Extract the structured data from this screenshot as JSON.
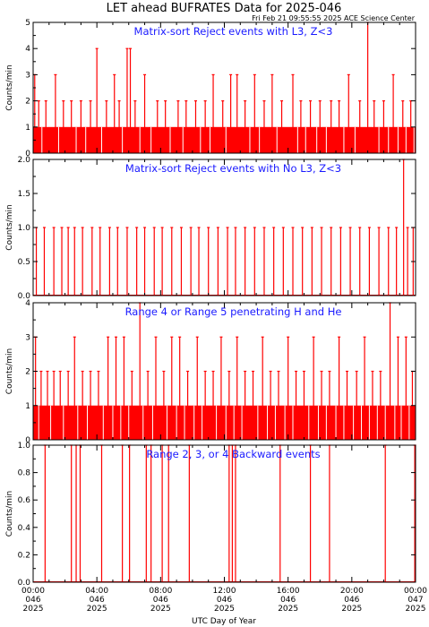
{
  "title": "LET ahead BUFRATES Data for 2025-046",
  "timestamp": "Fri Feb 21 09:55:55 2025 ACE Science Center",
  "xlabel": "UTC Day of Year",
  "x_ticks": [
    {
      "time": "00:00",
      "doy": "046",
      "year": "2025"
    },
    {
      "time": "04:00",
      "doy": "046",
      "year": "2025"
    },
    {
      "time": "08:00",
      "doy": "046",
      "year": "2025"
    },
    {
      "time": "12:00",
      "doy": "046",
      "year": "2025"
    },
    {
      "time": "16:00",
      "doy": "046",
      "year": "2025"
    },
    {
      "time": "20:00",
      "doy": "046",
      "year": "2025"
    },
    {
      "time": "00:00",
      "doy": "047",
      "year": "2025"
    }
  ],
  "colors": {
    "data": "#ff0000",
    "label": "#1a1aff",
    "axis": "#000000"
  },
  "chart_data": [
    {
      "type": "line",
      "title": "Matrix-sort Reject events with L3, Z<3",
      "ylabel": "Counts/min",
      "ylim": [
        0,
        5
      ],
      "yticks": [
        "0",
        "1",
        "2",
        "3",
        "4",
        "5"
      ],
      "xlim_hours": [
        0,
        24
      ],
      "spikes": [
        {
          "x": 0.1,
          "y": 3
        },
        {
          "x": 0.35,
          "y": 2
        },
        {
          "x": 0.8,
          "y": 2
        },
        {
          "x": 1.4,
          "y": 3
        },
        {
          "x": 1.9,
          "y": 2
        },
        {
          "x": 2.4,
          "y": 2
        },
        {
          "x": 3.0,
          "y": 2
        },
        {
          "x": 3.6,
          "y": 2
        },
        {
          "x": 4.0,
          "y": 4
        },
        {
          "x": 4.6,
          "y": 2
        },
        {
          "x": 5.1,
          "y": 3
        },
        {
          "x": 5.4,
          "y": 2
        },
        {
          "x": 5.9,
          "y": 4
        },
        {
          "x": 6.1,
          "y": 4
        },
        {
          "x": 6.4,
          "y": 2
        },
        {
          "x": 7.0,
          "y": 3
        },
        {
          "x": 7.8,
          "y": 2
        },
        {
          "x": 8.3,
          "y": 2
        },
        {
          "x": 9.1,
          "y": 2
        },
        {
          "x": 9.6,
          "y": 2
        },
        {
          "x": 10.2,
          "y": 2
        },
        {
          "x": 10.8,
          "y": 2
        },
        {
          "x": 11.3,
          "y": 3
        },
        {
          "x": 11.9,
          "y": 2
        },
        {
          "x": 12.4,
          "y": 3
        },
        {
          "x": 12.8,
          "y": 3
        },
        {
          "x": 13.3,
          "y": 2
        },
        {
          "x": 13.9,
          "y": 3
        },
        {
          "x": 14.5,
          "y": 2
        },
        {
          "x": 15.0,
          "y": 3
        },
        {
          "x": 15.6,
          "y": 2
        },
        {
          "x": 16.3,
          "y": 3
        },
        {
          "x": 16.8,
          "y": 2
        },
        {
          "x": 17.4,
          "y": 2
        },
        {
          "x": 18.0,
          "y": 2
        },
        {
          "x": 18.7,
          "y": 2
        },
        {
          "x": 19.2,
          "y": 2
        },
        {
          "x": 19.8,
          "y": 3
        },
        {
          "x": 20.5,
          "y": 2
        },
        {
          "x": 21.0,
          "y": 5
        },
        {
          "x": 21.4,
          "y": 2
        },
        {
          "x": 22.0,
          "y": 2
        },
        {
          "x": 22.6,
          "y": 3
        },
        {
          "x": 23.2,
          "y": 2
        },
        {
          "x": 23.7,
          "y": 2
        }
      ],
      "baseline": 1,
      "zero_dips": [
        0.55,
        1.6,
        2.7,
        3.3,
        4.3,
        5.6,
        6.7,
        7.4,
        8.6,
        9.4,
        10.5,
        11.1,
        12.1,
        13.6,
        14.2,
        15.3,
        16.6,
        17.1,
        17.8,
        18.4,
        19.5,
        20.2,
        21.7,
        22.3,
        22.9,
        23.4,
        23.9
      ]
    },
    {
      "type": "line",
      "title": "Matrix-sort Reject events with No L3, Z<3",
      "ylabel": "Counts/min",
      "ylim": [
        0,
        2
      ],
      "yticks": [
        "0.0",
        "0.5",
        "1.0",
        "1.5",
        "2.0"
      ],
      "xlim_hours": [
        0,
        24
      ],
      "spikes": [
        {
          "x": 0.2,
          "y": 1
        },
        {
          "x": 0.7,
          "y": 1
        },
        {
          "x": 1.3,
          "y": 1
        },
        {
          "x": 1.8,
          "y": 1
        },
        {
          "x": 2.2,
          "y": 1
        },
        {
          "x": 2.6,
          "y": 1
        },
        {
          "x": 3.1,
          "y": 1
        },
        {
          "x": 3.7,
          "y": 1
        },
        {
          "x": 4.2,
          "y": 1
        },
        {
          "x": 4.8,
          "y": 1
        },
        {
          "x": 5.3,
          "y": 1
        },
        {
          "x": 5.9,
          "y": 1
        },
        {
          "x": 6.5,
          "y": 1
        },
        {
          "x": 7.0,
          "y": 1
        },
        {
          "x": 7.6,
          "y": 1
        },
        {
          "x": 8.1,
          "y": 1
        },
        {
          "x": 8.7,
          "y": 1
        },
        {
          "x": 9.3,
          "y": 1
        },
        {
          "x": 9.9,
          "y": 1
        },
        {
          "x": 10.4,
          "y": 1
        },
        {
          "x": 11.0,
          "y": 1
        },
        {
          "x": 11.6,
          "y": 1
        },
        {
          "x": 12.2,
          "y": 1
        },
        {
          "x": 12.7,
          "y": 1
        },
        {
          "x": 13.3,
          "y": 1
        },
        {
          "x": 13.9,
          "y": 1
        },
        {
          "x": 14.5,
          "y": 1
        },
        {
          "x": 15.1,
          "y": 1
        },
        {
          "x": 15.7,
          "y": 1
        },
        {
          "x": 16.3,
          "y": 1
        },
        {
          "x": 16.9,
          "y": 1
        },
        {
          "x": 17.5,
          "y": 1
        },
        {
          "x": 18.1,
          "y": 1
        },
        {
          "x": 18.7,
          "y": 1
        },
        {
          "x": 19.3,
          "y": 1
        },
        {
          "x": 19.9,
          "y": 1
        },
        {
          "x": 20.5,
          "y": 1
        },
        {
          "x": 21.1,
          "y": 1
        },
        {
          "x": 21.7,
          "y": 1
        },
        {
          "x": 22.3,
          "y": 1
        },
        {
          "x": 22.8,
          "y": 1
        },
        {
          "x": 23.25,
          "y": 2
        },
        {
          "x": 23.5,
          "y": 1
        },
        {
          "x": 23.85,
          "y": 1
        }
      ],
      "baseline": 0,
      "zero_dips": []
    },
    {
      "type": "line",
      "title": "Range 4 or Range 5 penetrating H and He",
      "ylabel": "Counts/min",
      "ylim": [
        0,
        4
      ],
      "yticks": [
        "0",
        "1",
        "2",
        "3",
        "4"
      ],
      "xlim_hours": [
        0,
        24
      ],
      "spikes": [
        {
          "x": 0.15,
          "y": 3
        },
        {
          "x": 0.5,
          "y": 2
        },
        {
          "x": 0.9,
          "y": 2
        },
        {
          "x": 1.3,
          "y": 2
        },
        {
          "x": 1.7,
          "y": 2
        },
        {
          "x": 2.2,
          "y": 2
        },
        {
          "x": 2.6,
          "y": 3
        },
        {
          "x": 3.1,
          "y": 2
        },
        {
          "x": 3.6,
          "y": 2
        },
        {
          "x": 4.1,
          "y": 2
        },
        {
          "x": 4.7,
          "y": 3
        },
        {
          "x": 5.2,
          "y": 3
        },
        {
          "x": 5.7,
          "y": 3
        },
        {
          "x": 6.2,
          "y": 2
        },
        {
          "x": 6.7,
          "y": 4
        },
        {
          "x": 7.2,
          "y": 2
        },
        {
          "x": 7.7,
          "y": 3
        },
        {
          "x": 8.2,
          "y": 2
        },
        {
          "x": 8.7,
          "y": 3
        },
        {
          "x": 9.2,
          "y": 3
        },
        {
          "x": 9.7,
          "y": 2
        },
        {
          "x": 10.3,
          "y": 3
        },
        {
          "x": 10.8,
          "y": 2
        },
        {
          "x": 11.3,
          "y": 2
        },
        {
          "x": 11.8,
          "y": 3
        },
        {
          "x": 12.3,
          "y": 2
        },
        {
          "x": 12.8,
          "y": 3
        },
        {
          "x": 13.3,
          "y": 2
        },
        {
          "x": 13.8,
          "y": 2
        },
        {
          "x": 14.4,
          "y": 3
        },
        {
          "x": 14.9,
          "y": 2
        },
        {
          "x": 15.4,
          "y": 2
        },
        {
          "x": 16.0,
          "y": 3
        },
        {
          "x": 16.5,
          "y": 2
        },
        {
          "x": 17.0,
          "y": 2
        },
        {
          "x": 17.6,
          "y": 3
        },
        {
          "x": 18.1,
          "y": 2
        },
        {
          "x": 18.6,
          "y": 2
        },
        {
          "x": 19.2,
          "y": 3
        },
        {
          "x": 19.7,
          "y": 2
        },
        {
          "x": 20.3,
          "y": 2
        },
        {
          "x": 20.8,
          "y": 3
        },
        {
          "x": 21.3,
          "y": 2
        },
        {
          "x": 21.8,
          "y": 2
        },
        {
          "x": 22.4,
          "y": 4
        },
        {
          "x": 22.9,
          "y": 3
        },
        {
          "x": 23.4,
          "y": 3
        },
        {
          "x": 23.8,
          "y": 2
        }
      ],
      "baseline": 1,
      "zero_dips": [
        0.35,
        1.1,
        1.9,
        2.8,
        3.4,
        4.4,
        5.0,
        5.5,
        6.0,
        6.9,
        7.5,
        8.4,
        9.0,
        9.5,
        10.1,
        10.6,
        11.5,
        12.1,
        12.6,
        13.1,
        14.1,
        14.7,
        15.2,
        15.8,
        16.3,
        17.3,
        17.9,
        18.4,
        19.0,
        19.5,
        20.1,
        20.6,
        21.1,
        21.6,
        22.1,
        22.7,
        23.1,
        23.6
      ]
    },
    {
      "type": "line",
      "title": "Range 2, 3, or 4 Backward events",
      "ylabel": "Counts/min",
      "ylim": [
        0,
        1
      ],
      "yticks": [
        "0.0",
        "0.2",
        "0.4",
        "0.6",
        "0.8",
        "1.0"
      ],
      "xlim_hours": [
        0,
        24
      ],
      "spikes": [
        {
          "x": 0.75,
          "y": 1
        },
        {
          "x": 2.4,
          "y": 1
        },
        {
          "x": 2.7,
          "y": 1
        },
        {
          "x": 2.95,
          "y": 1
        },
        {
          "x": 4.3,
          "y": 1
        },
        {
          "x": 5.6,
          "y": 1
        },
        {
          "x": 6.05,
          "y": 1
        },
        {
          "x": 7.1,
          "y": 1
        },
        {
          "x": 7.4,
          "y": 1
        },
        {
          "x": 8.1,
          "y": 1
        },
        {
          "x": 8.5,
          "y": 1
        },
        {
          "x": 9.8,
          "y": 1
        },
        {
          "x": 12.3,
          "y": 1
        },
        {
          "x": 12.5,
          "y": 1
        },
        {
          "x": 12.7,
          "y": 1
        },
        {
          "x": 15.5,
          "y": 1
        },
        {
          "x": 17.4,
          "y": 1
        },
        {
          "x": 18.6,
          "y": 1
        },
        {
          "x": 22.1,
          "y": 1
        },
        {
          "x": 23.95,
          "y": 1
        }
      ],
      "baseline": 0,
      "zero_dips": []
    }
  ]
}
